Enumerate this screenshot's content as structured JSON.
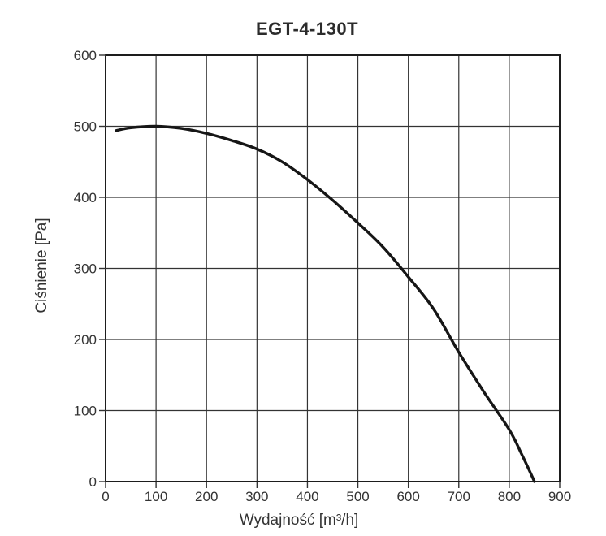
{
  "chart_data": {
    "type": "line",
    "title": "EGT-4-130T",
    "xlabel": "Wydajność [m³/h]",
    "ylabel": "Ciśnienie [Pa]",
    "xlim": [
      0,
      900
    ],
    "ylim": [
      0,
      600
    ],
    "xticks": [
      0,
      100,
      200,
      300,
      400,
      500,
      600,
      700,
      800,
      900
    ],
    "yticks": [
      0,
      100,
      200,
      300,
      400,
      500,
      600
    ],
    "grid": true,
    "legend": "none",
    "series": [
      {
        "points": [
          [
            21,
            494
          ],
          [
            50,
            498
          ],
          [
            100,
            500
          ],
          [
            150,
            497
          ],
          [
            200,
            490
          ],
          [
            250,
            480
          ],
          [
            300,
            468
          ],
          [
            350,
            450
          ],
          [
            400,
            425
          ],
          [
            450,
            396
          ],
          [
            500,
            364
          ],
          [
            550,
            330
          ],
          [
            600,
            288
          ],
          [
            650,
            243
          ],
          [
            700,
            182
          ],
          [
            750,
            126
          ],
          [
            800,
            73
          ],
          [
            825,
            38
          ],
          [
            850,
            0
          ]
        ]
      }
    ],
    "colors": {
      "background": "#ffffff",
      "curve": "#161616",
      "gridline": "#333333",
      "axis_border": "#1d1d1d",
      "text": "#333333"
    }
  }
}
